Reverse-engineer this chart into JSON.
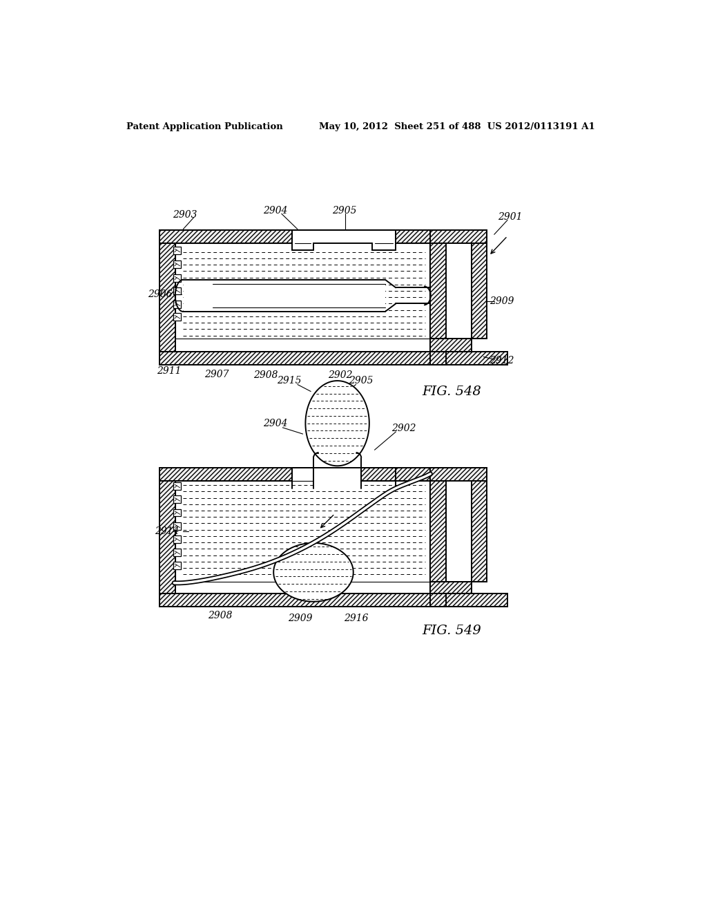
{
  "background_color": "#ffffff",
  "header_left": "Patent Application Publication",
  "header_right": "May 10, 2012  Sheet 251 of 488  US 2012/0113191 A1",
  "fig548_label": "FIG. 548",
  "fig549_label": "FIG. 549"
}
